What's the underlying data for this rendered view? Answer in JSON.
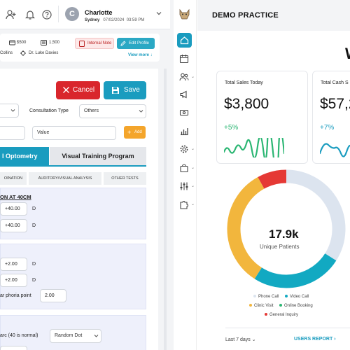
{
  "topbar": {
    "avatar_initial": "C",
    "patient_name": "Charlotte",
    "patient_location": "Sydney",
    "patient_date": "07/02/2024",
    "patient_time": "03:59 PM"
  },
  "infobar": {
    "amount": "$500",
    "points": "1,500",
    "surname": "Collins",
    "doctor": "Dr. Luke Davies",
    "internal_note_label": "Internal Note",
    "edit_profile_label": "Edit Profile",
    "view_more_label": "View more"
  },
  "form": {
    "cancel_label": "Cancel",
    "save_label": "Save",
    "consultation_type_label": "Consultation Type",
    "consultation_type_value": "Others",
    "value_placeholder": "Value",
    "add_label": "Add",
    "tabs": [
      "l Optometry",
      "Visual Training Program"
    ],
    "subtabs": [
      "OINATION",
      "AUDITORY/VISUAL ANALYSIS",
      "OTHER TESTS"
    ],
    "section1": {
      "title": "ON AT 40CM",
      "value1": "+40.00",
      "unit1": "D",
      "value2": "+40.00",
      "unit2": "D"
    },
    "section2": {
      "value1": "+2.00",
      "unit1": "D",
      "value2": "+2.00",
      "unit2": "D",
      "phoria_label": "ar phoria point",
      "phoria_value": "2.00"
    },
    "section3": {
      "arc_label": "arc (40 is normal)",
      "arc_value": "Random Dot"
    }
  },
  "dashboard": {
    "title": "DEMO PRACTICE",
    "header_partial": "W",
    "total_sales_label": "Total Sales Today",
    "total_sales_value": "$3,800",
    "total_sales_change": "+5%",
    "total_cash_label": "Total Cash S",
    "total_cash_value": "$57,2",
    "total_cash_change": "+7%",
    "donut_value": "17.9k",
    "donut_label": "Unique Patients",
    "legend": [
      "Phone Call",
      "Video Call",
      "Clinic Visit",
      "Online Booking",
      "General Inquiry"
    ],
    "period_label": "Last 7 days",
    "users_report_label": "USERS REPORT",
    "colors": {
      "accent": "#1a9cbf",
      "phone_call": "#dce4ef",
      "video_call": "#12a9c2",
      "clinic_visit": "#f2b63d",
      "online_booking": "#2bb673",
      "general_inquiry": "#e53935"
    }
  },
  "chart_data": {
    "type": "pie",
    "categories": [
      "Phone Call",
      "Video Call",
      "Clinic Visit",
      "Online Booking",
      "General Inquiry"
    ],
    "values": [
      34,
      25,
      33,
      0,
      8
    ],
    "center_value": "17.9k",
    "center_label": "Unique Patients",
    "legend_position": "bottom"
  }
}
